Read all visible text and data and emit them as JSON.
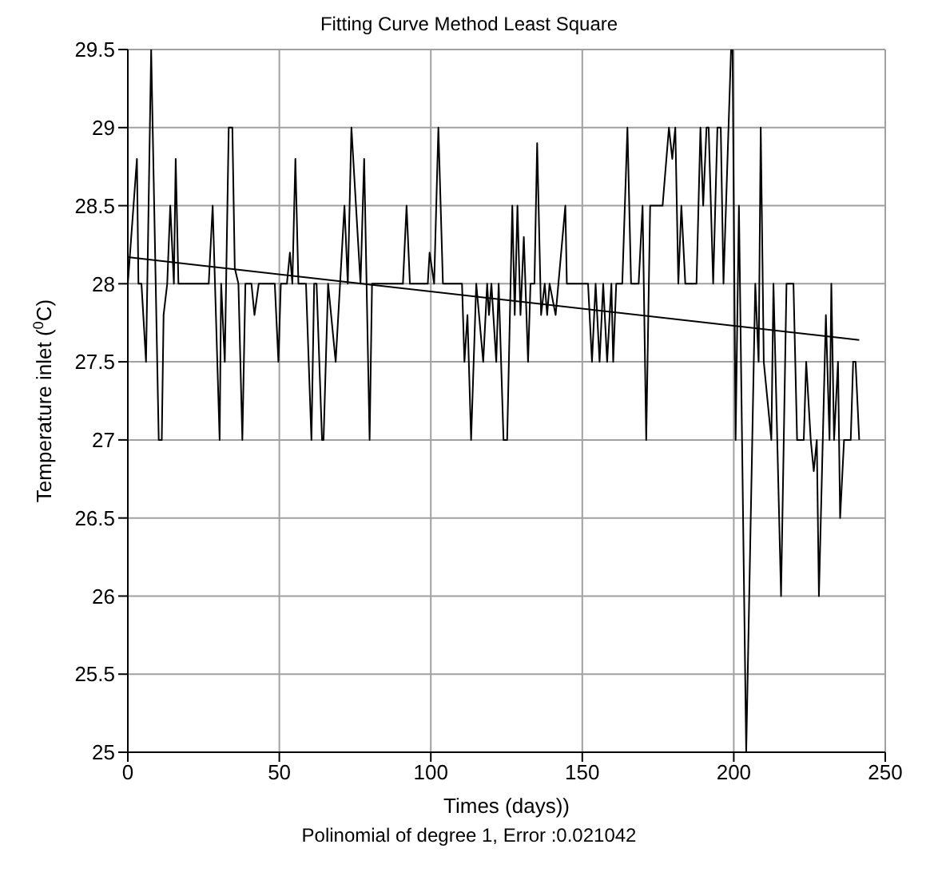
{
  "chart_data": {
    "type": "line",
    "title": "Fitting Curve Method Least Square",
    "xlabel": "Times (days))",
    "ylabel": "Temperature inlet ($^{0}$C)",
    "annotations": [
      "Polinomial of degree 1,  Error :0.021042"
    ],
    "series": [
      {
        "color": "#000000",
        "x": [
          0,
          3,
          3.5,
          4.5,
          6,
          7.7,
          10.2,
          11.2,
          11.8,
          13,
          14,
          15.2,
          15.8,
          16.7,
          26.7,
          28,
          30.3,
          30.8,
          32,
          33.3,
          34.5,
          35.3,
          36.5,
          37.8,
          38.8,
          40.8,
          41.8,
          43.2,
          48.5,
          49.7,
          50.5,
          52.5,
          53.5,
          54.3,
          55.3,
          56.3,
          58.8,
          60.6,
          61.5,
          62.3,
          64.1,
          64.6,
          66.1,
          68.6,
          71.5,
          72.6,
          73.8,
          76.8,
          78,
          79.8,
          80.6,
          90.8,
          92,
          93.1,
          99,
          99.6,
          101.1,
          102.5,
          104,
          110.3,
          111.1,
          112.1,
          113.3,
          115,
          117.3,
          118.6,
          119.2,
          120,
          121.6,
          122.4,
          124,
          125.2,
          126.9,
          127.7,
          128.6,
          129.6,
          130.7,
          132.1,
          132.9,
          134.2,
          135.1,
          136.4,
          137.6,
          138.4,
          139.2,
          141.2,
          144.4,
          144.9,
          151.9,
          153.2,
          154.4,
          155.7,
          156.9,
          158.2,
          159.6,
          160.2,
          161.2,
          163.2,
          164.9,
          166.1,
          168.6,
          169.9,
          171.1,
          172.4,
          173.6,
          176.5,
          178.6,
          179.7,
          180.7,
          181.7,
          182.7,
          184,
          187.7,
          189,
          189.9,
          191,
          191.7,
          193.2,
          194.6,
          195.7,
          196.6,
          199.1,
          199.6,
          200.6,
          201.7,
          204.1,
          207.1,
          208.2,
          208.9,
          209.9,
          212.4,
          213.1,
          215.6,
          217.4,
          219.7,
          220.9,
          223.1,
          223.9,
          225.4,
          226.4,
          227.4,
          228.1,
          230.4,
          231.6,
          232.2,
          233.1,
          234.4,
          235.1,
          236.4,
          238.6,
          239.4,
          240.2,
          241.4
        ],
        "values": [
          28,
          28.8,
          28,
          28,
          27.5,
          29.5,
          27,
          27,
          27.8,
          28,
          28.5,
          28,
          28.8,
          28,
          28,
          28.5,
          27,
          28,
          27.5,
          29,
          29,
          28.1,
          28,
          27,
          28,
          28,
          27.8,
          28,
          28,
          27.5,
          28,
          28,
          28.2,
          28,
          28.8,
          28,
          28,
          27,
          28,
          28,
          27,
          27,
          28,
          27.5,
          28.5,
          28,
          29,
          28,
          28.8,
          27,
          28,
          28,
          28.5,
          28,
          28,
          28.2,
          28,
          29,
          28,
          28,
          27.5,
          27.8,
          27,
          28,
          27.5,
          28,
          27.8,
          28,
          27.5,
          28,
          27,
          27,
          28.5,
          27.8,
          28.5,
          27.8,
          28.3,
          27.5,
          28,
          28,
          28.9,
          27.8,
          28,
          27.8,
          28,
          27.8,
          28.5,
          28,
          28,
          27.5,
          28,
          27.5,
          28,
          27.5,
          28,
          27.5,
          28,
          28,
          29,
          28,
          28,
          28.5,
          27,
          28.5,
          28.5,
          28.5,
          29,
          28.8,
          29,
          28,
          28.5,
          28,
          28,
          29,
          28.5,
          29,
          29,
          28,
          29,
          29,
          28,
          29.5,
          29.5,
          27,
          28.5,
          25,
          28,
          27.5,
          29,
          27.5,
          27,
          28,
          26,
          28,
          28,
          27,
          27,
          27.5,
          27,
          26.8,
          27,
          26,
          27.8,
          27,
          28,
          27,
          27.5,
          26.5,
          27,
          27,
          27.5,
          27.5,
          27
        ]
      },
      {
        "color": "#000000",
        "x": [
          0,
          241.4
        ],
        "values": [
          28.17,
          27.64
        ]
      }
    ],
    "xlim": [
      0,
      250
    ],
    "xticks": [
      0,
      50,
      100,
      150,
      200,
      250
    ],
    "ylim": [
      25,
      29.5
    ],
    "yticks": [
      25,
      25.5,
      26,
      26.5,
      27,
      27.5,
      28,
      28.5,
      29,
      29.5
    ],
    "grid": true,
    "legend": false
  }
}
